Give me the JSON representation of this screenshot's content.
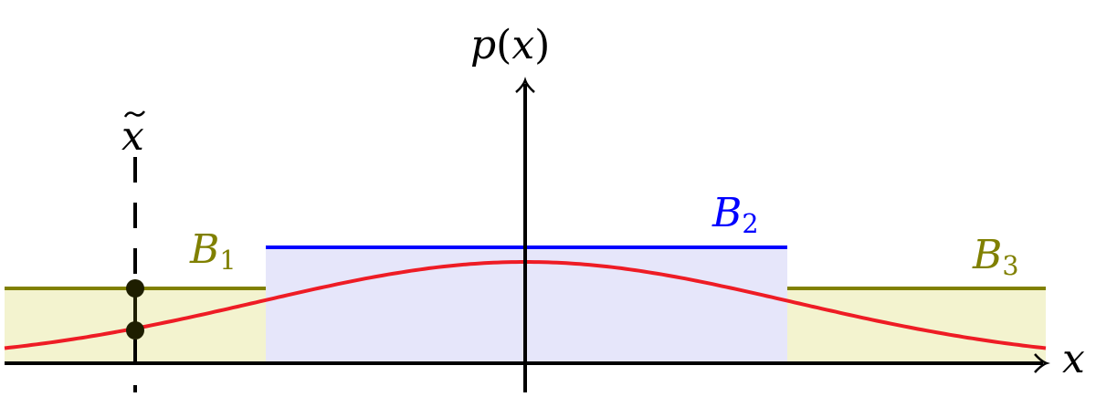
{
  "labels": {
    "y_axis": {
      "main": "p",
      "arg": "x"
    },
    "x_axis": "x",
    "marker": "x",
    "bins": [
      {
        "main": "B",
        "sub": "1"
      },
      {
        "main": "B",
        "sub": "2"
      },
      {
        "main": "B",
        "sub": "3"
      }
    ]
  },
  "colors": {
    "outer_bins": "#808000",
    "outer_fill": "#f3f3cf",
    "middle_bin": "#0000ff",
    "middle_fill": "#e6e6fa",
    "density_curve": "#ee1c25",
    "axis": "#000000",
    "marker": "#1e1e00"
  },
  "curve": {
    "type": "gaussian",
    "mean": 0
  }
}
